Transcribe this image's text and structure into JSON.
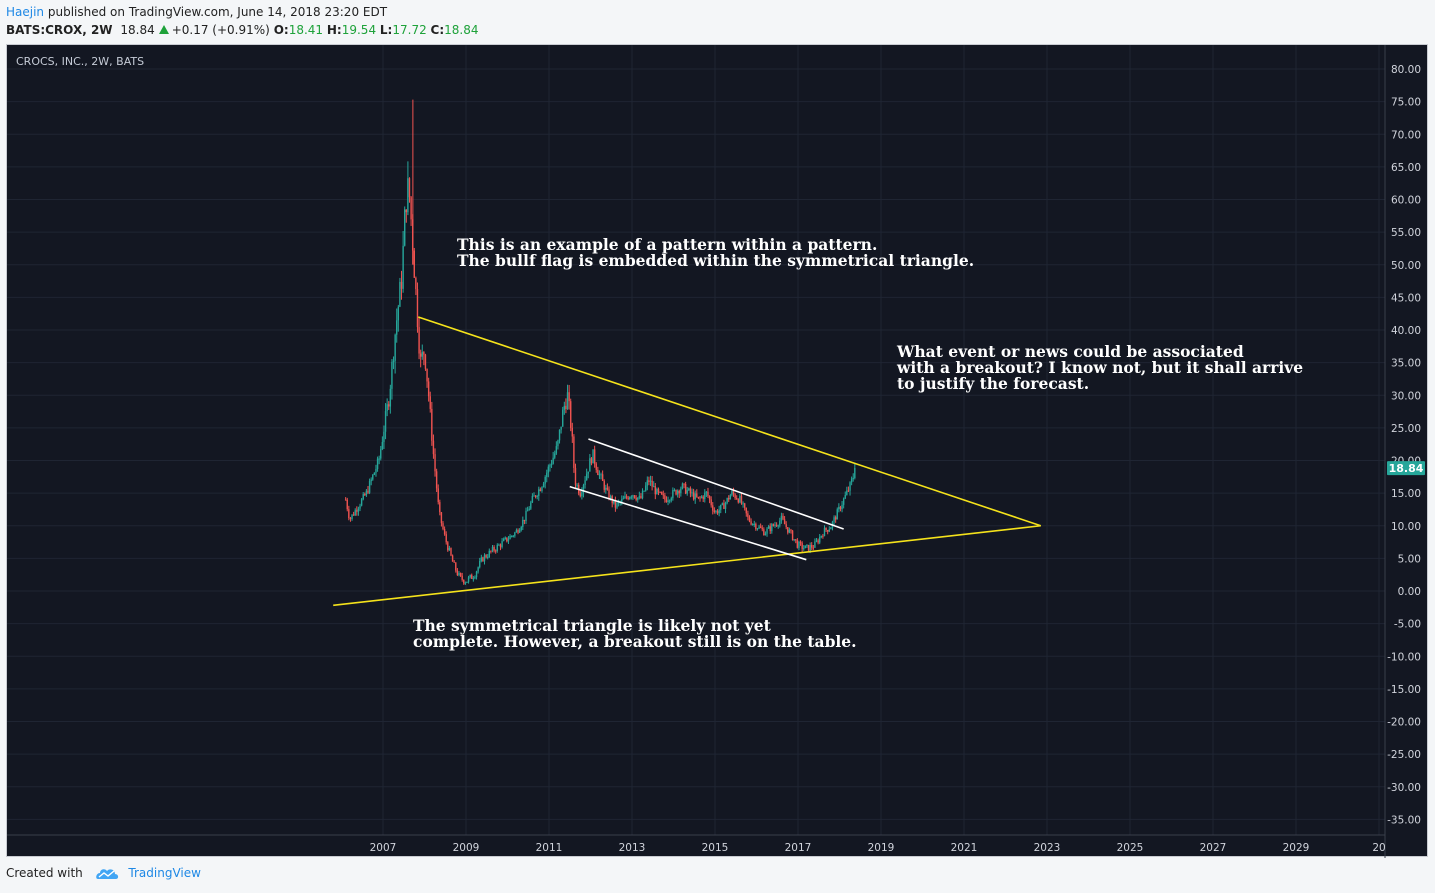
{
  "header": {
    "author": "Haejin",
    "published_text": "published on TradingView.com, June 14, 2018 23:20 EDT",
    "symbol": "BATS:CROX, 2W",
    "price": "18.84",
    "change": "+0.17 (+0.91%)",
    "o_label": "O:",
    "o_value": "18.41",
    "h_label": "H:",
    "h_value": "19.54",
    "l_label": "L:",
    "l_value": "17.72",
    "c_label": "C:",
    "c_value": "18.84"
  },
  "chart_title": "CROCS, INC., 2W, BATS",
  "price_badge": "18.84",
  "annotations": {
    "pattern_line1": "This is an example of a pattern within a pattern.",
    "pattern_line2": "The bullf flag is embedded within the symmetrical triangle.",
    "event_line1": "What event or news could be associated",
    "event_line2": "with a breakout? I know not, but it shall arrive",
    "event_line3": "to justify the forecast.",
    "triangle_line1": "The symmetrical triangle is likely not yet",
    "triangle_line2": "complete. However, a breakout still is on the table."
  },
  "footer": {
    "created_with": "Created with",
    "brand": "TradingView",
    "brand_icon": "tradingview-cloud-icon"
  },
  "colors": {
    "up": "#26a69a",
    "down": "#ef5350",
    "triangle": "#f5e31b",
    "flag": "#ffffff",
    "badge": "#26a69a",
    "background": "#131722"
  },
  "chart_data": {
    "type": "candlestick",
    "symbol": "BATS:CROX",
    "interval": "2W",
    "ylim": [
      -37,
      82
    ],
    "y_ticks": [
      "80.00",
      "75.00",
      "70.00",
      "65.00",
      "60.00",
      "55.00",
      "50.00",
      "45.00",
      "40.00",
      "35.00",
      "30.00",
      "25.00",
      "20.00",
      "15.00",
      "10.00",
      "5.00",
      "0.00",
      "-5.00",
      "-10.00",
      "-15.00",
      "-20.00",
      "-25.00",
      "-30.00",
      "-35.00"
    ],
    "x_ticks": [
      "2007",
      "2009",
      "2011",
      "2013",
      "2015",
      "2017",
      "2019",
      "2021",
      "2023",
      "2025",
      "2027",
      "2029",
      "20"
    ],
    "close_path": [
      [
        2006.1,
        14
      ],
      [
        2006.2,
        11
      ],
      [
        2006.4,
        13
      ],
      [
        2006.6,
        15
      ],
      [
        2006.9,
        20
      ],
      [
        2007.0,
        24
      ],
      [
        2007.15,
        30
      ],
      [
        2007.3,
        40
      ],
      [
        2007.45,
        48
      ],
      [
        2007.55,
        60
      ],
      [
        2007.62,
        62
      ],
      [
        2007.7,
        55
      ],
      [
        2007.8,
        45
      ],
      [
        2007.9,
        35
      ],
      [
        2008.0,
        37
      ],
      [
        2008.1,
        30
      ],
      [
        2008.2,
        22
      ],
      [
        2008.35,
        12
      ],
      [
        2008.5,
        8
      ],
      [
        2008.7,
        4
      ],
      [
        2008.85,
        2
      ],
      [
        2009.0,
        1.5
      ],
      [
        2009.2,
        2.5
      ],
      [
        2009.4,
        5
      ],
      [
        2009.6,
        6
      ],
      [
        2009.8,
        7
      ],
      [
        2010.0,
        8
      ],
      [
        2010.2,
        9
      ],
      [
        2010.4,
        11
      ],
      [
        2010.6,
        14
      ],
      [
        2010.8,
        16
      ],
      [
        2011.0,
        19
      ],
      [
        2011.2,
        22
      ],
      [
        2011.35,
        28
      ],
      [
        2011.45,
        30
      ],
      [
        2011.55,
        24
      ],
      [
        2011.62,
        17
      ],
      [
        2011.75,
        15
      ],
      [
        2011.9,
        18
      ],
      [
        2012.05,
        21
      ],
      [
        2012.2,
        18
      ],
      [
        2012.4,
        15
      ],
      [
        2012.6,
        13
      ],
      [
        2012.8,
        14
      ],
      [
        2013.0,
        15
      ],
      [
        2013.2,
        14
      ],
      [
        2013.4,
        17
      ],
      [
        2013.6,
        15
      ],
      [
        2013.8,
        14
      ],
      [
        2014.0,
        15
      ],
      [
        2014.2,
        16
      ],
      [
        2014.4,
        15
      ],
      [
        2014.6,
        14
      ],
      [
        2014.8,
        15
      ],
      [
        2015.0,
        12
      ],
      [
        2015.2,
        13
      ],
      [
        2015.4,
        15
      ],
      [
        2015.6,
        14
      ],
      [
        2015.8,
        11
      ],
      [
        2016.0,
        10
      ],
      [
        2016.2,
        9
      ],
      [
        2016.4,
        10
      ],
      [
        2016.6,
        11
      ],
      [
        2016.8,
        9
      ],
      [
        2017.0,
        7
      ],
      [
        2017.2,
        6.5
      ],
      [
        2017.4,
        7
      ],
      [
        2017.6,
        9
      ],
      [
        2017.8,
        10
      ],
      [
        2017.95,
        12
      ],
      [
        2018.1,
        14
      ],
      [
        2018.25,
        16
      ],
      [
        2018.4,
        18.84
      ]
    ],
    "trendlines": [
      {
        "name": "triangle-upper",
        "color": "#f5e31b",
        "points": [
          [
            2007.85,
            42.0
          ],
          [
            2022.85,
            10.0
          ]
        ]
      },
      {
        "name": "triangle-lower",
        "color": "#f5e31b",
        "points": [
          [
            2005.8,
            -2.2
          ],
          [
            2022.85,
            10.0
          ]
        ]
      },
      {
        "name": "flag-upper",
        "color": "#ffffff",
        "points": [
          [
            2011.95,
            23.3
          ],
          [
            2018.1,
            9.5
          ]
        ]
      },
      {
        "name": "flag-lower",
        "color": "#ffffff",
        "points": [
          [
            2011.5,
            16.0
          ],
          [
            2017.2,
            4.8
          ]
        ]
      }
    ],
    "last_price": 18.84
  }
}
